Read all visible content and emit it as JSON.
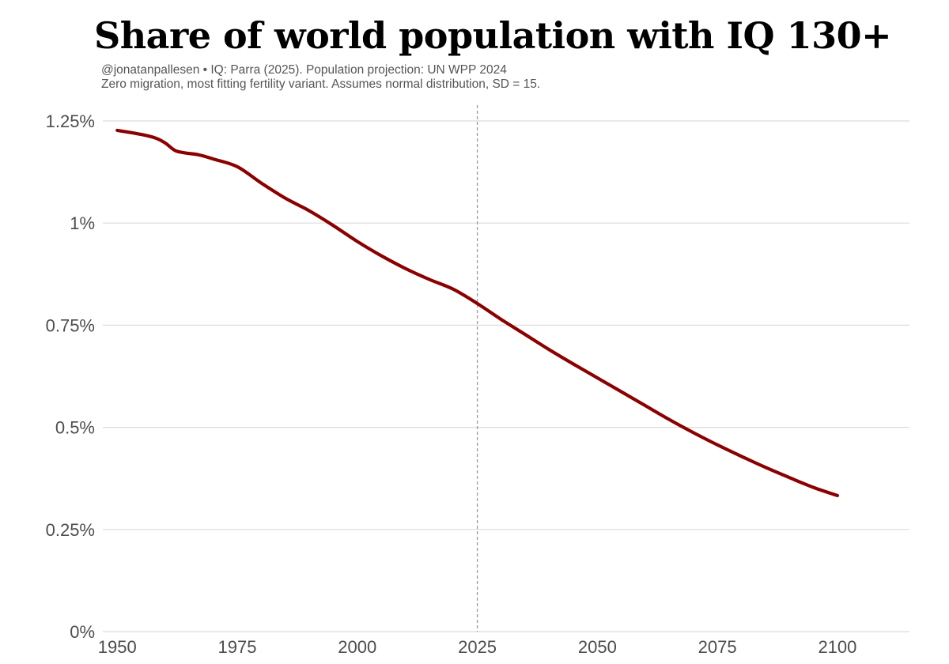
{
  "chart_data": {
    "type": "line",
    "title": "Share of world population with IQ 130+",
    "subtitle_lines": [
      "@jonatanpallesen • IQ: Parra (2025). Population projection: UN WPP 2024",
      "Zero migration, most fitting fertility variant. Assumes normal distribution, SD = 15."
    ],
    "xlabel": "",
    "ylabel": "",
    "xlim": [
      1947,
      2115
    ],
    "ylim": [
      0,
      1.25
    ],
    "x_ticks": [
      1950,
      1975,
      2000,
      2025,
      2050,
      2075,
      2100
    ],
    "x_tick_labels": [
      "1950",
      "1975",
      "2000",
      "2025",
      "2050",
      "2075",
      "2100"
    ],
    "y_ticks": [
      0,
      0.25,
      0.5,
      0.75,
      1.0,
      1.25
    ],
    "y_tick_labels": [
      "0%",
      "0.25%",
      "0.5%",
      "0.75%",
      "1%",
      "1.25%"
    ],
    "grid": "horizontal",
    "reference_line": {
      "x": 2025,
      "style": "dashed"
    },
    "series": [
      {
        "name": "Share with IQ 130+ (%)",
        "color": "#8b0000",
        "x": [
          1950,
          1955,
          1958,
          1960,
          1962,
          1964,
          1967,
          1970,
          1975,
          1980,
          1985,
          1990,
          1995,
          2000,
          2005,
          2010,
          2015,
          2020,
          2025,
          2030,
          2035,
          2040,
          2045,
          2050,
          2055,
          2060,
          2065,
          2070,
          2075,
          2080,
          2085,
          2090,
          2095,
          2100
        ],
        "y": [
          1.227,
          1.217,
          1.208,
          1.196,
          1.178,
          1.172,
          1.167,
          1.157,
          1.138,
          1.098,
          1.061,
          1.03,
          0.994,
          0.955,
          0.92,
          0.889,
          0.862,
          0.838,
          0.803,
          0.764,
          0.727,
          0.69,
          0.655,
          0.621,
          0.587,
          0.553,
          0.519,
          0.487,
          0.457,
          0.429,
          0.402,
          0.377,
          0.353,
          0.333
        ]
      }
    ]
  }
}
